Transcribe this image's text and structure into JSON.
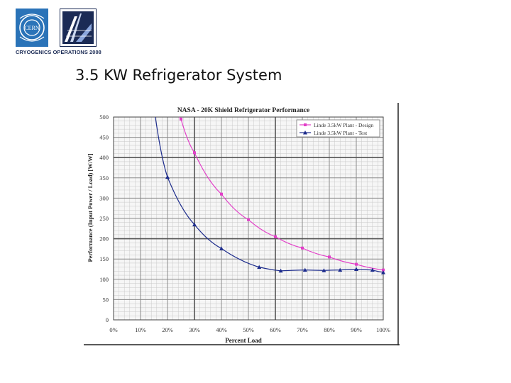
{
  "header": {
    "logo_caption": "CRYOGENICS OPERATIONS 2008",
    "cern_logo_text": "CERN",
    "slide_title": "3.5 KW Refrigerator System"
  },
  "colors": {
    "design_series": "#e23ec8",
    "test_series": "#1d2c8c",
    "cern_blue": "#2a73b8",
    "dark_navy": "#1b2b55"
  },
  "chart_data": {
    "type": "line",
    "title": "NASA - 20K Shield Refrigerator Performance",
    "xlabel": "Percent Load",
    "ylabel": "Performance (Input Power / Load) [W/W]",
    "xlim": [
      0,
      100
    ],
    "ylim": [
      0,
      500
    ],
    "x_ticks": [
      0,
      10,
      20,
      30,
      40,
      50,
      60,
      70,
      80,
      90,
      100
    ],
    "x_tick_labels": [
      "0%",
      "10%",
      "20%",
      "30%",
      "40%",
      "50%",
      "60%",
      "70%",
      "80%",
      "90%",
      "100%"
    ],
    "y_ticks": [
      0,
      50,
      100,
      150,
      200,
      250,
      300,
      350,
      400,
      450,
      500
    ],
    "grid": true,
    "legend_position": "top-right",
    "series": [
      {
        "name": "Linde 3.5kW Plant - Design",
        "marker": "square",
        "color": "#e23ec8",
        "x": [
          25,
          30,
          40,
          50,
          60,
          70,
          80,
          90,
          100
        ],
        "y": [
          495,
          412,
          310,
          247,
          205,
          177,
          155,
          137,
          123
        ]
      },
      {
        "name": "Linde 3.5kW Plant - Test",
        "marker": "triangle",
        "color": "#1d2c8c",
        "x": [
          20,
          30,
          40,
          54,
          62,
          71,
          78,
          84,
          90,
          96,
          100
        ],
        "y": [
          352,
          235,
          176,
          130,
          121,
          123,
          122,
          123,
          125,
          123,
          117
        ]
      }
    ],
    "design_curve_top": {
      "x": 24.5,
      "y": 500
    },
    "test_curve_top": {
      "x": 15.5,
      "y": 500
    }
  }
}
